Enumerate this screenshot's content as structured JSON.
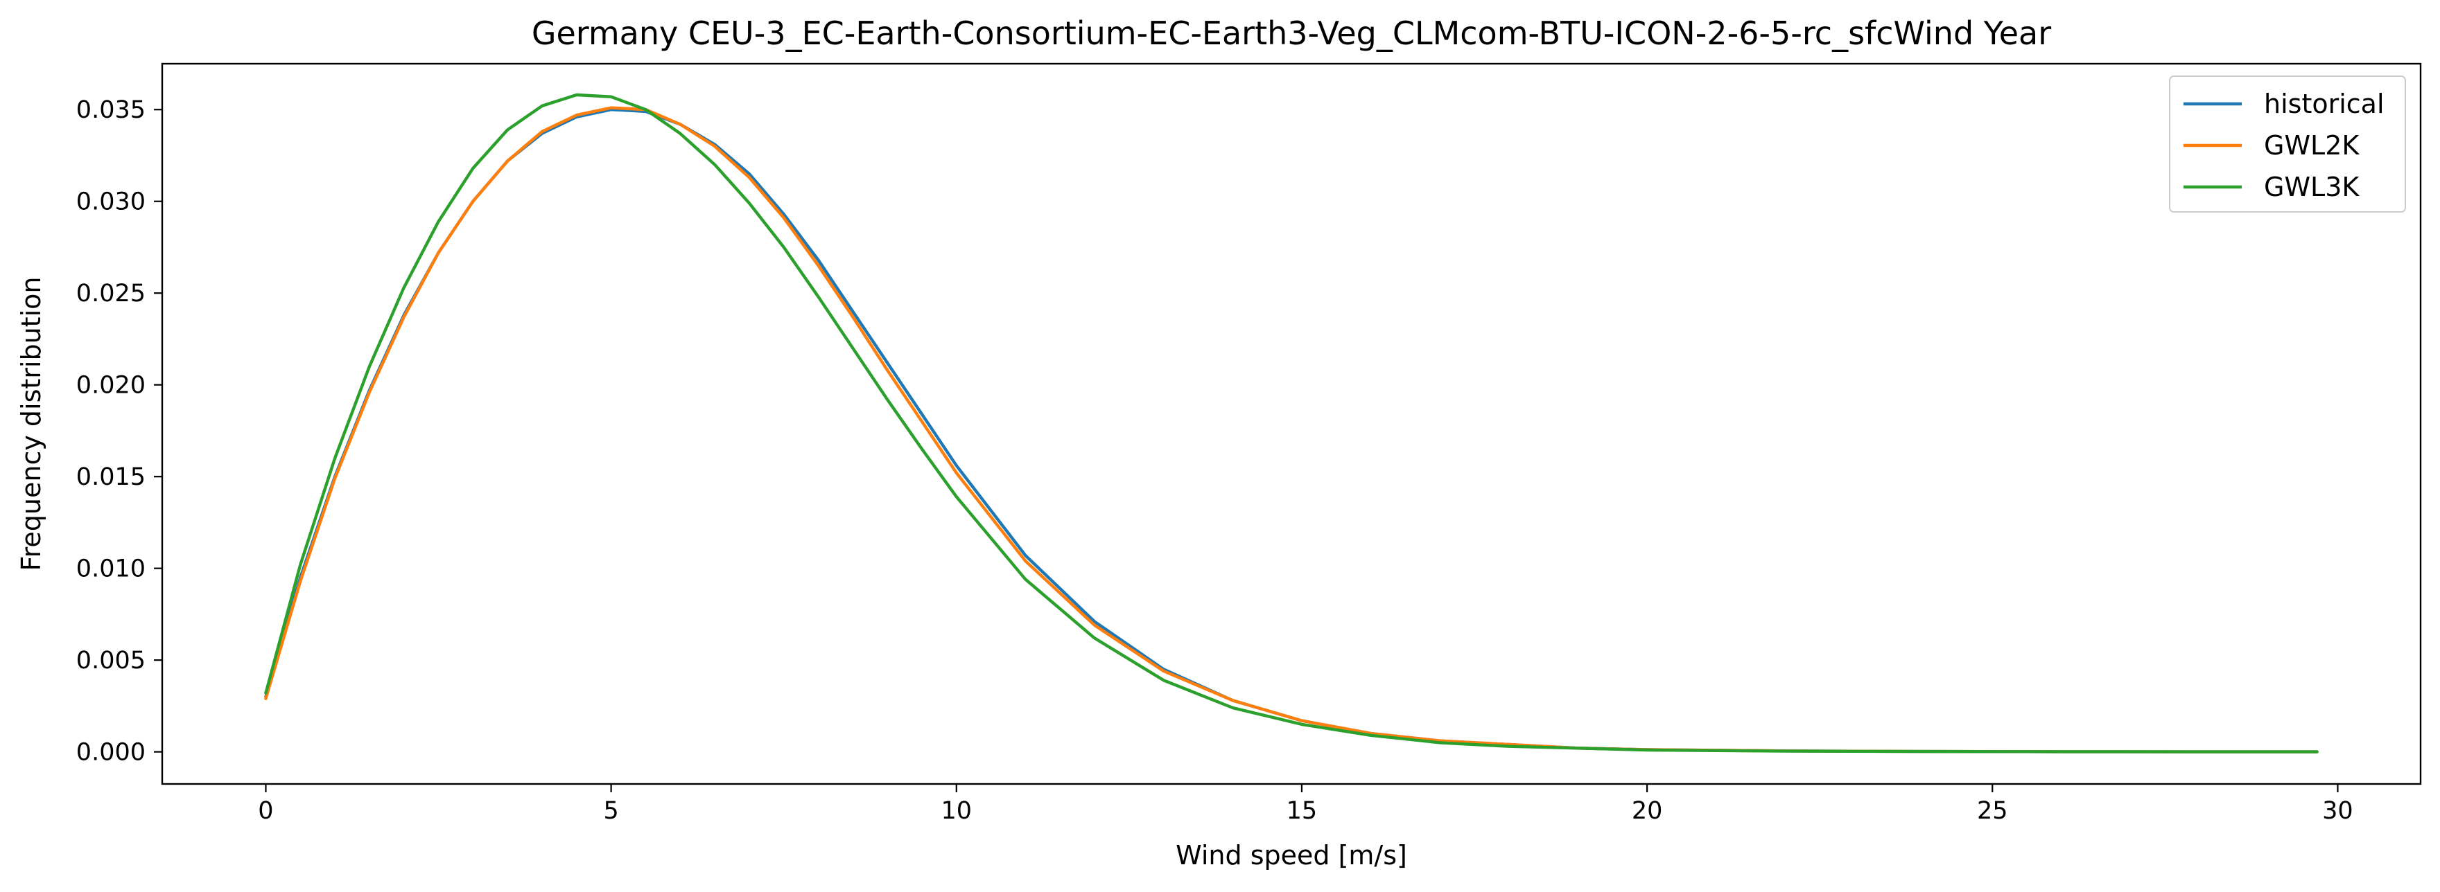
{
  "chart_data": {
    "type": "line",
    "title": "Germany CEU-3_EC-Earth-Consortium-EC-Earth3-Veg_CLMcom-BTU-ICON-2-6-5-rc_sfcWind Year",
    "xlabel": "Wind speed [m/s]",
    "ylabel": "Frequency distribution",
    "xlim": [
      -1.5,
      31.2
    ],
    "ylim": [
      -0.00175,
      0.0375
    ],
    "x_ticks": [
      0,
      5,
      10,
      15,
      20,
      25,
      30
    ],
    "x_tick_labels": [
      "0",
      "5",
      "10",
      "15",
      "20",
      "25",
      "30"
    ],
    "y_ticks": [
      0.0,
      0.005,
      0.01,
      0.015,
      0.02,
      0.025,
      0.03,
      0.035
    ],
    "y_tick_labels": [
      "0.000",
      "0.005",
      "0.010",
      "0.015",
      "0.020",
      "0.025",
      "0.030",
      "0.035"
    ],
    "grid": false,
    "legend_position": "top-right",
    "x": [
      0,
      0.5,
      1,
      1.5,
      2,
      2.5,
      3,
      3.5,
      4,
      4.5,
      5,
      5.5,
      6,
      6.5,
      7,
      7.5,
      8,
      8.5,
      9,
      9.5,
      10,
      11,
      12,
      13,
      14,
      15,
      16,
      17,
      18,
      19,
      20,
      22,
      24,
      26,
      28,
      29.7
    ],
    "series": [
      {
        "name": "historical",
        "color": "#1f77b4",
        "values": [
          0.003,
          0.0095,
          0.015,
          0.0197,
          0.0238,
          0.0272,
          0.03,
          0.0322,
          0.0337,
          0.0346,
          0.035,
          0.0349,
          0.0342,
          0.0331,
          0.0315,
          0.0293,
          0.0268,
          0.024,
          0.0212,
          0.0184,
          0.0156,
          0.0107,
          0.0071,
          0.0045,
          0.0028,
          0.0017,
          0.001,
          0.0006,
          0.0004,
          0.0002,
          0.00012,
          5e-05,
          2e-05,
          1e-05,
          0.0,
          0.0
        ]
      },
      {
        "name": "GWL2K",
        "color": "#ff7f0e",
        "values": [
          0.0029,
          0.0093,
          0.0149,
          0.0196,
          0.0237,
          0.0272,
          0.03,
          0.0322,
          0.0338,
          0.0347,
          0.0351,
          0.035,
          0.0342,
          0.033,
          0.0313,
          0.0291,
          0.0265,
          0.0237,
          0.0208,
          0.018,
          0.0152,
          0.0104,
          0.0069,
          0.0044,
          0.0028,
          0.0017,
          0.001,
          0.0006,
          0.0004,
          0.0002,
          0.00012,
          5e-05,
          2e-05,
          1e-05,
          0.0,
          0.0
        ]
      },
      {
        "name": "GWL3K",
        "color": "#2ca02c",
        "values": [
          0.0032,
          0.0102,
          0.016,
          0.021,
          0.0253,
          0.0289,
          0.0318,
          0.0339,
          0.0352,
          0.0358,
          0.0357,
          0.035,
          0.0337,
          0.032,
          0.0299,
          0.0275,
          0.0248,
          0.022,
          0.0192,
          0.0165,
          0.0139,
          0.0094,
          0.0062,
          0.0039,
          0.0024,
          0.0015,
          0.0009,
          0.0005,
          0.0003,
          0.0002,
          0.0001,
          4e-05,
          2e-05,
          1e-05,
          0.0,
          0.0
        ]
      }
    ]
  }
}
